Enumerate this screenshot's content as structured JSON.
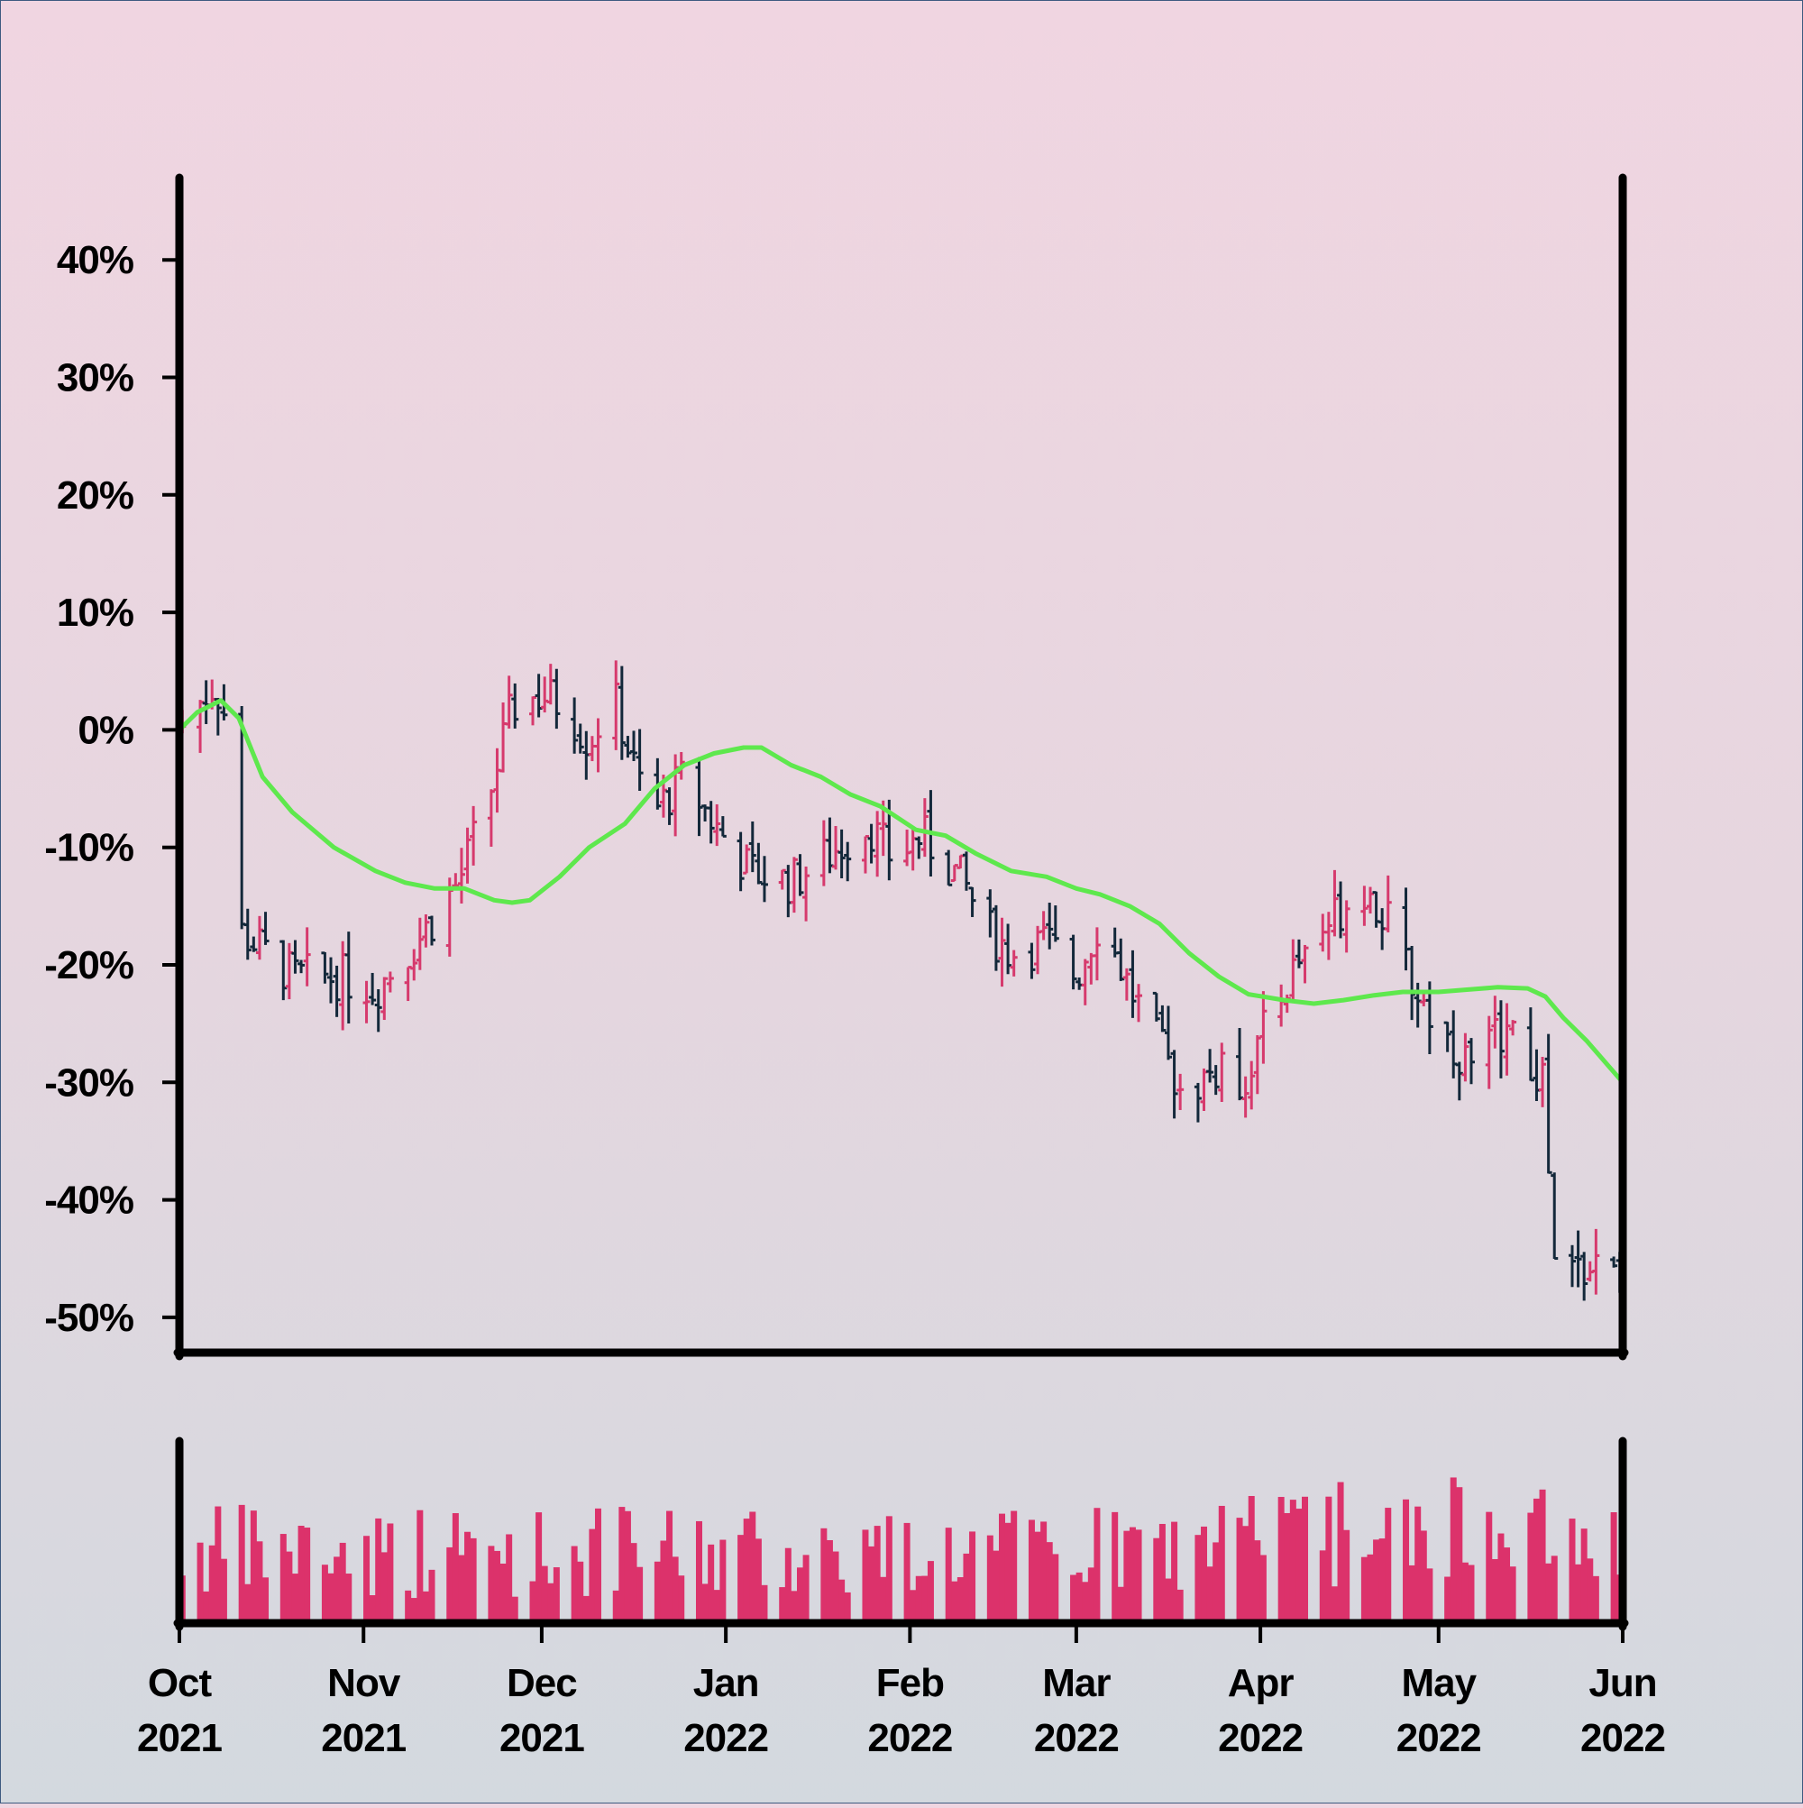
{
  "chart_data": {
    "type": "ohlc",
    "title": "",
    "xlabel": "",
    "ylabel": "",
    "ylim": [
      -0.53,
      0.47
    ],
    "yticks": [
      {
        "value": 0.4,
        "label": "40%"
      },
      {
        "value": 0.3,
        "label": "30%"
      },
      {
        "value": 0.2,
        "label": "20%"
      },
      {
        "value": 0.1,
        "label": "10%"
      },
      {
        "value": 0.0,
        "label": "0%"
      },
      {
        "value": -0.1,
        "label": "-10%"
      },
      {
        "value": -0.2,
        "label": "-20%"
      },
      {
        "value": -0.3,
        "label": "-30%"
      },
      {
        "value": -0.4,
        "label": "-40%"
      },
      {
        "value": -0.5,
        "label": "-50%"
      }
    ],
    "xticks": [
      {
        "date": "2021-10-01",
        "month": "Oct",
        "year": "2021"
      },
      {
        "date": "2021-11-01",
        "month": "Nov",
        "year": "2021"
      },
      {
        "date": "2021-12-01",
        "month": "Dec",
        "year": "2021"
      },
      {
        "date": "2022-01-01",
        "month": "Jan",
        "year": "2022"
      },
      {
        "date": "2022-02-01",
        "month": "Feb",
        "year": "2022"
      },
      {
        "date": "2022-03-01",
        "month": "Mar",
        "year": "2022"
      },
      {
        "date": "2022-04-01",
        "month": "Apr",
        "year": "2022"
      },
      {
        "date": "2022-05-01",
        "month": "May",
        "year": "2022"
      },
      {
        "date": "2022-06-01",
        "month": "Jun",
        "year": "2022"
      }
    ],
    "xrange": [
      "2021-10-01",
      "2022-06-01"
    ],
    "price_keypoints": [
      [
        "2021-10-01",
        0.0
      ],
      [
        "2021-10-07",
        0.04
      ],
      [
        "2021-10-10",
        -0.01
      ],
      [
        "2021-10-11",
        -0.17
      ],
      [
        "2021-10-20",
        -0.21
      ],
      [
        "2021-10-28",
        -0.21
      ],
      [
        "2021-11-03",
        -0.22
      ],
      [
        "2021-11-10",
        -0.18
      ],
      [
        "2021-11-17",
        -0.13
      ],
      [
        "2021-11-22",
        -0.06
      ],
      [
        "2021-11-26",
        0.02
      ],
      [
        "2021-12-01",
        0.03
      ],
      [
        "2021-12-05",
        0.02
      ],
      [
        "2021-12-09",
        -0.01
      ],
      [
        "2021-12-13",
        0.03
      ],
      [
        "2021-12-17",
        -0.04
      ],
      [
        "2021-12-20",
        -0.07
      ],
      [
        "2021-12-25",
        -0.04
      ],
      [
        "2021-12-30",
        -0.08
      ],
      [
        "2022-01-05",
        -0.12
      ],
      [
        "2022-01-12",
        -0.13
      ],
      [
        "2022-01-20",
        -0.1
      ],
      [
        "2022-01-25",
        -0.08
      ],
      [
        "2022-01-29",
        -0.11
      ],
      [
        "2022-02-03",
        -0.09
      ],
      [
        "2022-02-10",
        -0.13
      ],
      [
        "2022-02-14",
        -0.17
      ],
      [
        "2022-02-18",
        -0.19
      ],
      [
        "2022-02-24",
        -0.18
      ],
      [
        "2022-03-01",
        -0.21
      ],
      [
        "2022-03-05",
        -0.16
      ],
      [
        "2022-03-10",
        -0.22
      ],
      [
        "2022-03-14",
        -0.26
      ],
      [
        "2022-03-19",
        -0.31
      ],
      [
        "2022-03-24",
        -0.29
      ],
      [
        "2022-03-29",
        -0.3
      ],
      [
        "2022-04-03",
        -0.24
      ],
      [
        "2022-04-08",
        -0.19
      ],
      [
        "2022-04-13",
        -0.16
      ],
      [
        "2022-04-18",
        -0.13
      ],
      [
        "2022-04-22",
        -0.16
      ],
      [
        "2022-04-27",
        -0.22
      ],
      [
        "2022-05-02",
        -0.26
      ],
      [
        "2022-05-07",
        -0.29
      ],
      [
        "2022-05-12",
        -0.25
      ],
      [
        "2022-05-16",
        -0.29
      ],
      [
        "2022-05-19",
        -0.3
      ],
      [
        "2022-05-20",
        -0.46
      ],
      [
        "2022-05-25",
        -0.46
      ],
      [
        "2022-05-31",
        -0.46
      ]
    ],
    "moving_average": [
      [
        "2021-10-01",
        0.0
      ],
      [
        "2021-10-04",
        0.015
      ],
      [
        "2021-10-08",
        0.025
      ],
      [
        "2021-10-11",
        0.01
      ],
      [
        "2021-10-15",
        -0.04
      ],
      [
        "2021-10-20",
        -0.07
      ],
      [
        "2021-10-27",
        -0.1
      ],
      [
        "2021-11-03",
        -0.12
      ],
      [
        "2021-11-08",
        -0.13
      ],
      [
        "2021-11-13",
        -0.135
      ],
      [
        "2021-11-18",
        -0.135
      ],
      [
        "2021-11-23",
        -0.145
      ],
      [
        "2021-11-26",
        -0.147
      ],
      [
        "2021-11-29",
        -0.145
      ],
      [
        "2021-12-04",
        -0.125
      ],
      [
        "2021-12-09",
        -0.1
      ],
      [
        "2021-12-15",
        -0.08
      ],
      [
        "2021-12-20",
        -0.05
      ],
      [
        "2021-12-25",
        -0.03
      ],
      [
        "2021-12-30",
        -0.02
      ],
      [
        "2022-01-04",
        -0.015
      ],
      [
        "2022-01-07",
        -0.015
      ],
      [
        "2022-01-12",
        -0.03
      ],
      [
        "2022-01-17",
        -0.04
      ],
      [
        "2022-01-22",
        -0.055
      ],
      [
        "2022-01-27",
        -0.065
      ],
      [
        "2022-02-02",
        -0.085
      ],
      [
        "2022-02-07",
        -0.09
      ],
      [
        "2022-02-12",
        -0.105
      ],
      [
        "2022-02-18",
        -0.12
      ],
      [
        "2022-02-24",
        -0.125
      ],
      [
        "2022-03-01",
        -0.135
      ],
      [
        "2022-03-05",
        -0.14
      ],
      [
        "2022-03-10",
        -0.15
      ],
      [
        "2022-03-15",
        -0.165
      ],
      [
        "2022-03-20",
        -0.19
      ],
      [
        "2022-03-25",
        -0.21
      ],
      [
        "2022-03-30",
        -0.225
      ],
      [
        "2022-04-05",
        -0.23
      ],
      [
        "2022-04-10",
        -0.233
      ],
      [
        "2022-04-15",
        -0.23
      ],
      [
        "2022-04-20",
        -0.226
      ],
      [
        "2022-04-25",
        -0.223
      ],
      [
        "2022-05-01",
        -0.223
      ],
      [
        "2022-05-06",
        -0.221
      ],
      [
        "2022-05-11",
        -0.219
      ],
      [
        "2022-05-16",
        -0.22
      ],
      [
        "2022-05-19",
        -0.227
      ],
      [
        "2022-05-22",
        -0.245
      ],
      [
        "2022-05-26",
        -0.265
      ],
      [
        "2022-06-01",
        -0.3
      ]
    ],
    "colors": {
      "up": "#d63a6d",
      "down": "#13283a",
      "moving_average": "#5ee84d",
      "volume": "#dc326b",
      "axis": "#000000",
      "background_top": "#f0d5e1",
      "background_bottom": "#d3d9df"
    }
  }
}
